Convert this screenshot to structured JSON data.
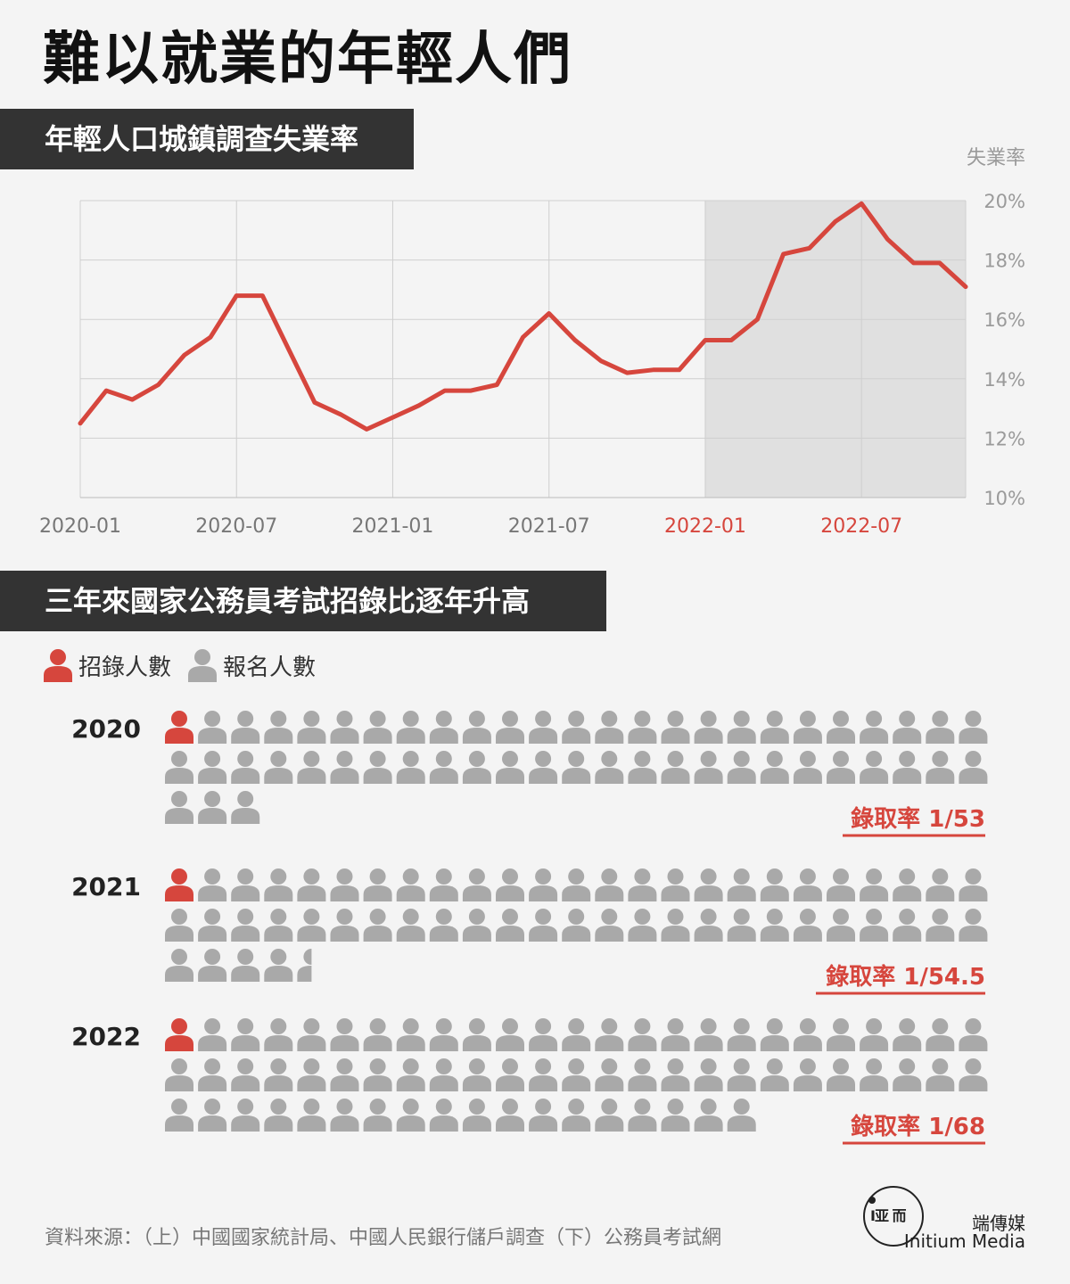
{
  "title": "難以就業的年輕人們",
  "sections": {
    "line_title": "年輕人口城鎮調查失業率",
    "picto_title": "三年來國家公務員考試招錄比逐年升高"
  },
  "colors": {
    "accent": "#d6463d",
    "gray_icon": "#a9a9a9",
    "header_bg": "#333333",
    "shade": "#e0e0e0"
  },
  "chart_data": [
    {
      "type": "line",
      "title": "年輕人口城鎮調查失業率",
      "ylabel": "失業率",
      "ylim": [
        10,
        20
      ],
      "yticks": [
        "10%",
        "12%",
        "14%",
        "16%",
        "18%",
        "20%"
      ],
      "x": [
        "2020-01",
        "2020-02",
        "2020-03",
        "2020-04",
        "2020-05",
        "2020-06",
        "2020-07",
        "2020-08",
        "2020-09",
        "2020-10",
        "2020-11",
        "2020-12",
        "2021-01",
        "2021-02",
        "2021-03",
        "2021-04",
        "2021-05",
        "2021-06",
        "2021-07",
        "2021-08",
        "2021-09",
        "2021-10",
        "2021-11",
        "2021-12",
        "2022-01",
        "2022-02",
        "2022-03",
        "2022-04",
        "2022-05",
        "2022-06",
        "2022-07",
        "2022-08",
        "2022-09",
        "2022-10",
        "2022-11"
      ],
      "xticks": [
        "2020-01",
        "2020-07",
        "2021-01",
        "2021-07",
        "2022-01",
        "2022-07"
      ],
      "highlight_xticks": [
        "2022-01",
        "2022-07"
      ],
      "highlight_start": "2022-01",
      "series": [
        {
          "values": [
            12.5,
            13.6,
            13.3,
            13.8,
            14.8,
            15.4,
            16.8,
            16.8,
            15.0,
            13.2,
            12.8,
            12.3,
            12.7,
            13.1,
            13.6,
            13.6,
            13.8,
            15.4,
            16.2,
            15.3,
            14.6,
            14.2,
            14.3,
            14.3,
            15.3,
            15.3,
            16.0,
            18.2,
            18.4,
            19.3,
            19.9,
            18.7,
            17.9,
            17.9,
            17.1
          ]
        }
      ],
      "grid": true
    },
    {
      "type": "pictogram",
      "title": "三年來國家公務員考試招錄比逐年升高",
      "legend": [
        "招錄人數",
        "報名人數"
      ],
      "rows": [
        {
          "year": "2020",
          "total": 53,
          "rate_label": "錄取率 1/53"
        },
        {
          "year": "2021",
          "total": 54.5,
          "rate_label": "錄取率 1/54.5"
        },
        {
          "year": "2022",
          "total": 68,
          "rate_label": "錄取率 1/68"
        }
      ]
    }
  ],
  "source": "資料來源：（上）中國國家統計局、中國人民銀行儲戶調查（下）公務員考試網",
  "brand": {
    "glyph": "I亚 而",
    "name_cn": "端傳媒",
    "name_en": "Initium Media"
  }
}
